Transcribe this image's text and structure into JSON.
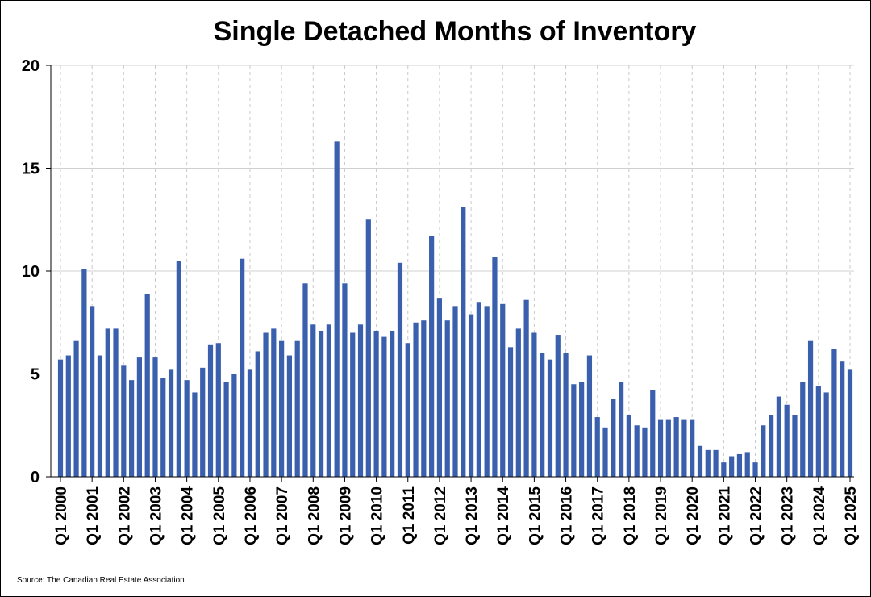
{
  "chart_data": {
    "type": "bar",
    "title": "Single Detached Months of Inventory",
    "source": "Source: The Canadian Real Estate Association",
    "xlabel": "",
    "ylabel": "",
    "ylim": [
      0,
      20
    ],
    "yticks": [
      0,
      5,
      10,
      15,
      20
    ],
    "grid": true,
    "bar_color": "#3a5fad",
    "x_tick_labels": [
      "Q1 2000",
      "Q1 2001",
      "Q1 2002",
      "Q1 2003",
      "Q1 2004",
      "Q1 2005",
      "Q1 2006",
      "Q1 2007",
      "Q1 2008",
      "Q1 2009",
      "Q1 2010",
      "Q1 2011",
      "Q1 2012",
      "Q1 2013",
      "Q1 2014",
      "Q1 2015",
      "Q1 2016",
      "Q1 2017",
      "Q1 2018",
      "Q1 2019",
      "Q1 2020",
      "Q1 2021",
      "Q1 2022",
      "Q1 2023",
      "Q1 2024",
      "Q1 2025"
    ],
    "values": [
      5.7,
      5.9,
      6.6,
      10.1,
      8.3,
      5.9,
      7.2,
      7.2,
      5.4,
      4.7,
      5.8,
      8.9,
      5.8,
      4.8,
      5.2,
      10.5,
      4.7,
      4.1,
      5.3,
      6.4,
      6.5,
      4.6,
      5.0,
      10.6,
      5.2,
      6.1,
      7.0,
      7.2,
      6.6,
      5.9,
      6.6,
      9.4,
      7.4,
      7.1,
      7.4,
      16.3,
      9.4,
      7.0,
      7.4,
      12.5,
      7.1,
      6.8,
      7.1,
      10.4,
      6.5,
      7.5,
      7.6,
      11.7,
      8.7,
      7.6,
      8.3,
      13.1,
      7.9,
      8.5,
      8.3,
      10.7,
      8.4,
      6.3,
      7.2,
      8.6,
      7.0,
      6.0,
      5.7,
      6.9,
      6.0,
      4.5,
      4.6,
      5.9,
      2.9,
      2.4,
      3.8,
      4.6,
      3.0,
      2.5,
      2.4,
      4.2,
      2.8,
      2.8,
      2.9,
      2.8,
      2.8,
      1.5,
      1.3,
      1.3,
      0.7,
      1.0,
      1.1,
      1.2,
      0.7,
      2.5,
      3.0,
      3.9,
      3.5,
      3.0,
      4.6,
      6.6,
      4.4,
      4.1,
      6.2,
      5.6,
      5.2
    ]
  }
}
